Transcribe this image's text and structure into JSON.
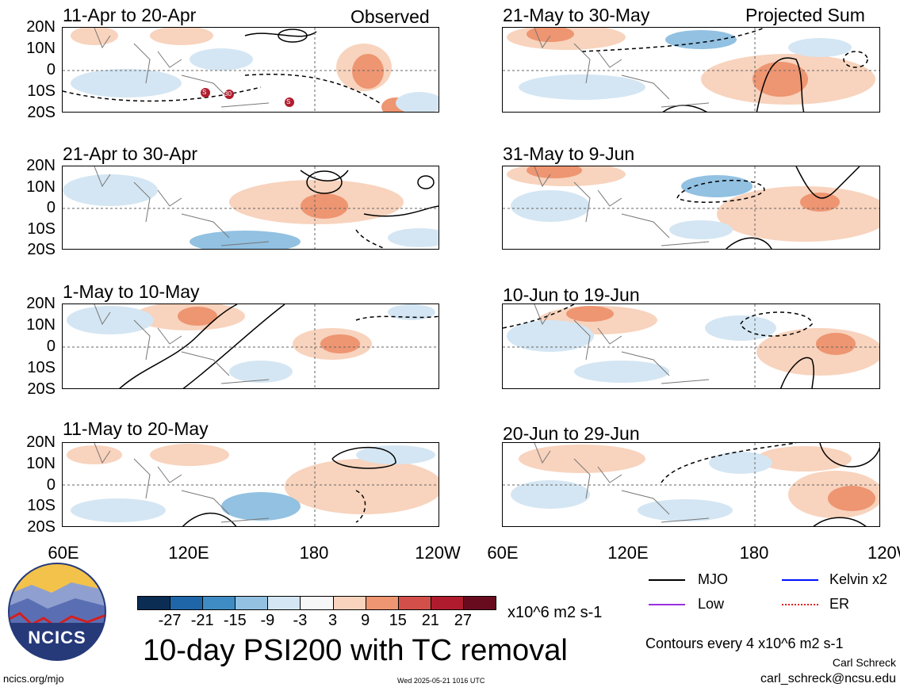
{
  "observed_label": "Observed",
  "projected_label": "Projected Sum",
  "panels": [
    {
      "title": "11-Apr to 20-Apr"
    },
    {
      "title": "21-Apr to 30-Apr"
    },
    {
      "title": "1-May to 10-May"
    },
    {
      "title": "11-May to 20-May"
    },
    {
      "title": "21-May to 30-May"
    },
    {
      "title": "31-May to 9-Jun"
    },
    {
      "title": "10-Jun to 19-Jun"
    },
    {
      "title": "20-Jun to 29-Jun"
    }
  ],
  "lat_labels": [
    "20N",
    "10N",
    "0",
    "10S",
    "20S"
  ],
  "lon_labels": [
    "60E",
    "120E",
    "180",
    "120W"
  ],
  "tc_markers": [
    "S",
    "30",
    "S"
  ],
  "colorbar": {
    "ticks": [
      "-27",
      "-21",
      "-15",
      "-9",
      "-3",
      "3",
      "9",
      "15",
      "21",
      "27"
    ],
    "colors": [
      "#0b2d54",
      "#1f66a8",
      "#3f8cc4",
      "#92c1e2",
      "#d4e6f3",
      "#f7f7f7",
      "#f8d3bd",
      "#ee9571",
      "#d3504a",
      "#b01c2e",
      "#690b1f"
    ],
    "units": "x10^6 m2 s-1"
  },
  "main_title": "10-day PSI200 with TC removal",
  "legend": [
    {
      "label": "MJO",
      "color": "#000000"
    },
    {
      "label": "Kelvin x2",
      "color": "#0010ff"
    },
    {
      "label": "Low",
      "color": "#9b30e0"
    },
    {
      "label": "ER",
      "color": "#e02020"
    }
  ],
  "contour_note": "Contours every 4 x10^6 m2 s-1",
  "author": "Carl Schreck",
  "email": "carl_schreck@ncsu.edu",
  "url": "ncics.org/mjo",
  "timestamp": "Wed 2025-05-21 1016 UTC",
  "logo_text": "NCICS"
}
